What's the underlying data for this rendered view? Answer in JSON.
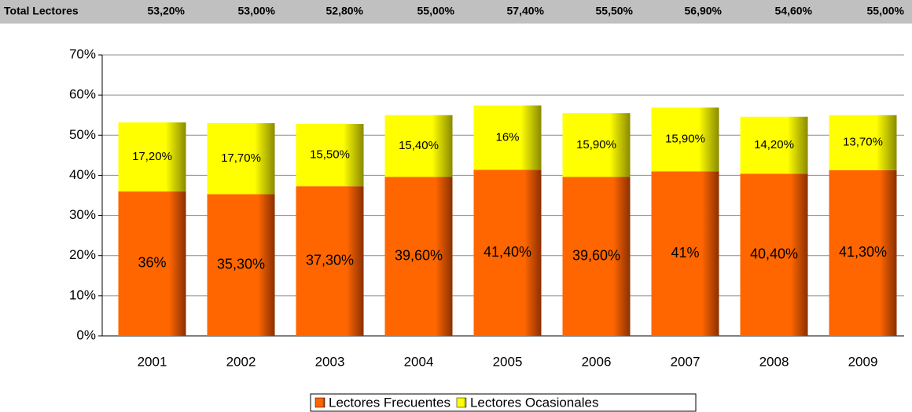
{
  "table": {
    "label": "Total Lectores",
    "cells": [
      "53,20%",
      "53,00%",
      "52,80%",
      "55,00%",
      "57,40%",
      "55,50%",
      "56,90%",
      "54,60%",
      "55,00%"
    ]
  },
  "chart_data": {
    "type": "stacked_bar",
    "categories": [
      "2001",
      "2002",
      "2003",
      "2004",
      "2005",
      "2006",
      "2007",
      "2008",
      "2009"
    ],
    "series": [
      {
        "name": "Lectores Frecuentes",
        "color": "#ff6600",
        "values": [
          36,
          35.3,
          37.3,
          39.6,
          41.4,
          39.6,
          41,
          40.4,
          41.3
        ],
        "value_labels": [
          "36%",
          "35,30%",
          "37,30%",
          "39,60%",
          "41,40%",
          "39,60%",
          "41%",
          "40,40%",
          "41,30%"
        ]
      },
      {
        "name": "Lectores Ocasionales",
        "color": "#ffff00",
        "values": [
          17.2,
          17.7,
          15.5,
          15.4,
          16,
          15.9,
          15.9,
          14.2,
          13.7
        ],
        "value_labels": [
          "17,20%",
          "17,70%",
          "15,50%",
          "15,40%",
          "16%",
          "15,90%",
          "15,90%",
          "14,20%",
          "13,70%"
        ]
      }
    ],
    "ylim": [
      0,
      70
    ],
    "yticks": [
      {
        "value": 0,
        "label": "0%"
      },
      {
        "value": 10,
        "label": "10%"
      },
      {
        "value": 20,
        "label": "20%"
      },
      {
        "value": 30,
        "label": "30%"
      },
      {
        "value": 40,
        "label": "40%"
      },
      {
        "value": 50,
        "label": "50%"
      },
      {
        "value": 60,
        "label": "60%"
      },
      {
        "value": 70,
        "label": "70%"
      }
    ],
    "grid": true,
    "legend": "bottom"
  }
}
